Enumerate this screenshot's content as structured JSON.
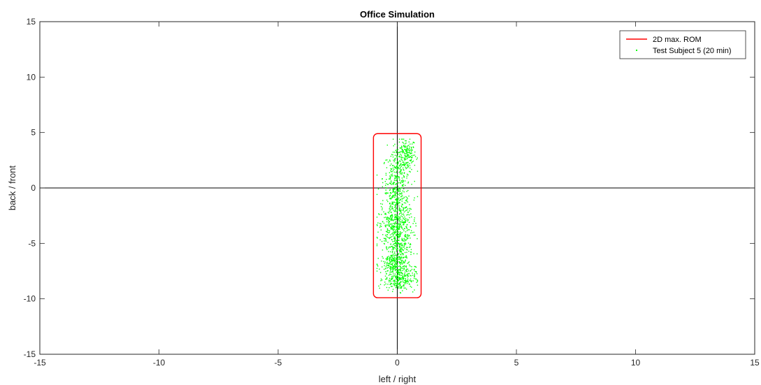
{
  "chart_data": {
    "type": "scatter",
    "title": "Office Simulation",
    "xlabel": "left  / right",
    "ylabel": "back  / front",
    "xlim": [
      -15,
      15
    ],
    "ylim": [
      -15,
      15
    ],
    "xticks": [
      -15,
      -10,
      -5,
      0,
      5,
      10,
      15
    ],
    "yticks": [
      -15,
      -10,
      -5,
      0,
      5,
      10,
      15
    ],
    "grid": false,
    "legend_position": "top-right",
    "series": [
      {
        "name": "2D max. ROM",
        "kind": "line",
        "color": "#ff0000",
        "outline": {
          "x_min": -1.0,
          "x_max": 1.0,
          "y_min": -9.9,
          "y_max": 4.9
        }
      },
      {
        "name": "Test Subject 5 (20 min)",
        "kind": "scatter",
        "color": "#00ff00",
        "clusters": [
          {
            "cx": 0.35,
            "cy": 3.0,
            "sx": 0.22,
            "sy": 0.75,
            "n": 200
          },
          {
            "cx": -0.05,
            "cy": 0.9,
            "sx": 0.28,
            "sy": 1.1,
            "n": 220
          },
          {
            "cx": 0.0,
            "cy": -1.5,
            "sx": 0.3,
            "sy": 0.9,
            "n": 220
          },
          {
            "cx": -0.05,
            "cy": -3.5,
            "sx": 0.35,
            "sy": 0.8,
            "n": 300
          },
          {
            "cx": 0.05,
            "cy": -5.3,
            "sx": 0.3,
            "sy": 0.6,
            "n": 170
          },
          {
            "cx": -0.1,
            "cy": -6.9,
            "sx": 0.3,
            "sy": 0.6,
            "n": 230
          },
          {
            "cx": 0.1,
            "cy": -8.2,
            "sx": 0.33,
            "sy": 0.55,
            "n": 260
          }
        ],
        "x_range": [
          -0.85,
          0.85
        ],
        "y_range": [
          -9.7,
          4.4
        ]
      }
    ]
  }
}
